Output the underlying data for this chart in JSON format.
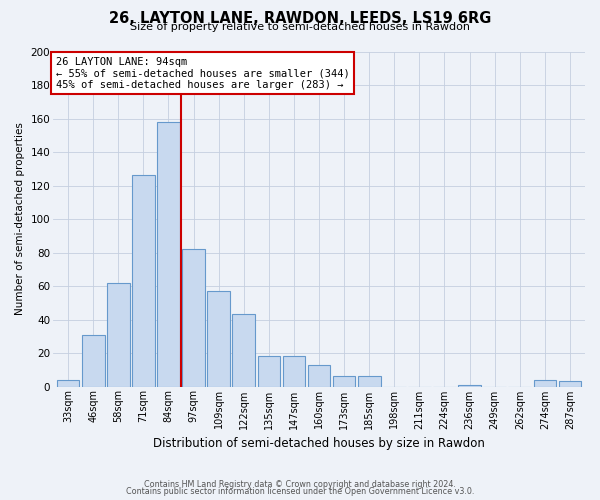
{
  "title": "26, LAYTON LANE, RAWDON, LEEDS, LS19 6RG",
  "subtitle": "Size of property relative to semi-detached houses in Rawdon",
  "xlabel": "Distribution of semi-detached houses by size in Rawdon",
  "ylabel": "Number of semi-detached properties",
  "bar_labels": [
    "33sqm",
    "46sqm",
    "58sqm",
    "71sqm",
    "84sqm",
    "97sqm",
    "109sqm",
    "122sqm",
    "135sqm",
    "147sqm",
    "160sqm",
    "173sqm",
    "185sqm",
    "198sqm",
    "211sqm",
    "224sqm",
    "236sqm",
    "249sqm",
    "262sqm",
    "274sqm",
    "287sqm"
  ],
  "bar_values": [
    4,
    31,
    62,
    126,
    158,
    82,
    57,
    43,
    18,
    18,
    13,
    6,
    6,
    0,
    0,
    0,
    1,
    0,
    0,
    4,
    3
  ],
  "bar_color": "#c8d9ef",
  "bar_edge_color": "#6699cc",
  "marker_line_color": "#cc0000",
  "annotation_title": "26 LAYTON LANE: 94sqm",
  "annotation_line1": "← 55% of semi-detached houses are smaller (344)",
  "annotation_line2": "45% of semi-detached houses are larger (283) →",
  "annotation_box_edge": "#cc0000",
  "ylim": [
    0,
    200
  ],
  "yticks": [
    0,
    20,
    40,
    60,
    80,
    100,
    120,
    140,
    160,
    180,
    200
  ],
  "footnote1": "Contains HM Land Registry data © Crown copyright and database right 2024.",
  "footnote2": "Contains public sector information licensed under the Open Government Licence v3.0.",
  "bg_color": "#eef2f8",
  "plot_bg_color": "#eef2f8"
}
